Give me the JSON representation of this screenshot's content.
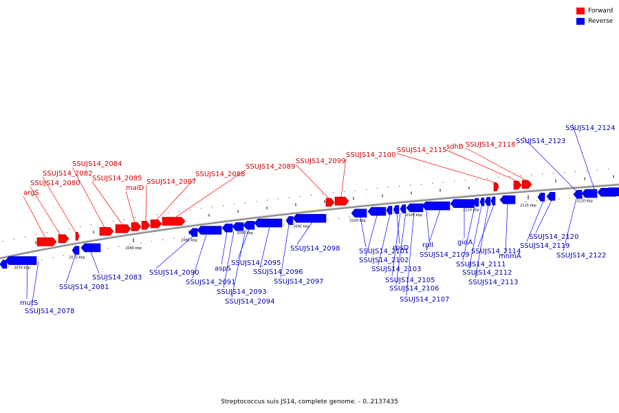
{
  "legend": {
    "forward_label": "Forward",
    "reverse_label": "Reverse",
    "forward_color": "#ff0000",
    "reverse_color": "#0000ff"
  },
  "caption": "Streptococcus suis JS14, complete genome. - 0..2137435",
  "axis": {
    "unit": "kbp",
    "ticks": [
      "2070 kbp",
      "2075 kbp",
      "2080 kbp",
      "2085 kbp",
      "2090 kbp",
      "2095 kbp",
      "2100 kbp",
      "2105 kbp",
      "2110 kbp",
      "2115 kbp",
      "2120 kbp"
    ]
  },
  "genes_forward": [
    "argS",
    "SSUJS14_2080",
    "SSUJS14_2082",
    "SSUJS14_2084",
    "SSUJS14_2085",
    "malD",
    "SSUJS14_2087",
    "SSUJS14_2088",
    "SSUJS14_2089",
    "SSUJS14_2099",
    "SSUJS14_2100",
    "SSUJS14_2115",
    "sdhB",
    "SSUJS14_2118"
  ],
  "genes_reverse": [
    "mutS",
    "SSUJS14_2078",
    "SSUJS14_2081",
    "SSUJS14_2083",
    "SSUJS14_2090",
    "SSUJS14_2091",
    "aspS",
    "SSUJS14_2093",
    "SSUJS14_2094",
    "SSUJS14_2095",
    "SSUJS14_2096",
    "SSUJS14_2097",
    "SSUJS14_2098",
    "SSUJS14_2101",
    "SSUJS14_2102",
    "SSUJS14_2103",
    "rpsD",
    "SSUJS14_2105",
    "SSUJS14_2106",
    "SSUJS14_2107",
    "rplI",
    "SSUJS14_2109",
    "gidA",
    "SSUJS14_2111",
    "SSUJS14_2112",
    "SSUJS14_2113",
    "SSUJS14_2114",
    "mnmA",
    "SSUJS14_2119",
    "SSUJS14_2120",
    "SSUJS14_2122",
    "SSUJS14_2123",
    "SSUJS14_2124"
  ]
}
